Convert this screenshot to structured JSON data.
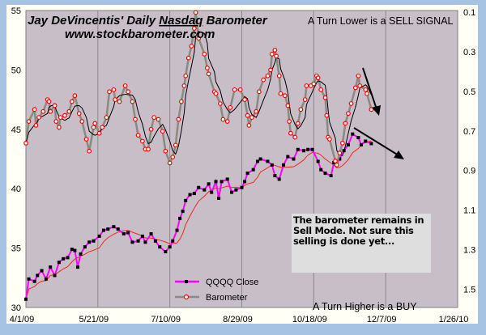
{
  "chart_data": {
    "type": "line",
    "title": "Jay DeVincentis' Daily Nasdaq Barometer",
    "title_parts": {
      "before": "Jay DeVincentis' Daily ",
      "underlined": "Nasdaq",
      "after": " Barometer"
    },
    "subtitle": "www.stockbarometer.com",
    "xlabel": "",
    "ylabel": "",
    "y2label": "",
    "x_range": [
      "4/1/09",
      "1/26/10"
    ],
    "x_ticks": [
      "4/1/09",
      "5/21/09",
      "7/10/09",
      "8/29/09",
      "10/18/09",
      "12/7/09",
      "1/26/10"
    ],
    "y_left": {
      "range": [
        30,
        55
      ],
      "ticks": [
        "30",
        "35",
        "40",
        "45",
        "50",
        "55"
      ]
    },
    "y_right": {
      "range": [
        0.1,
        1.6
      ],
      "inverted": true,
      "ticks": [
        "0.1",
        "0.3",
        "0.5",
        "0.7",
        "0.9",
        "1.1",
        "1.3",
        "1.5"
      ]
    },
    "grid": "vertical",
    "legend_placement": "bottom-center",
    "colors": {
      "plot_bg": "#c8bec8",
      "qqqq": "#ff00ff",
      "qqqq_marker": "#000000",
      "qqqq_ma": "#ff2020",
      "barometer": "#8a8a80",
      "barometer_marker": "#ff0000",
      "barometer_ma": "#000000"
    },
    "series": [
      {
        "name": "QQQQ Close",
        "axis": "left",
        "x": [
          "4/1/09",
          "4/3/09",
          "4/7/09",
          "4/9/09",
          "4/12/09",
          "4/15/09",
          "4/18/09",
          "4/21/09",
          "4/24/09",
          "4/27/09",
          "4/30/09",
          "5/3/09",
          "5/5/09",
          "5/7/09",
          "5/9/09",
          "5/12/09",
          "5/15/09",
          "5/18/09",
          "5/22/09",
          "5/25/09",
          "5/28/09",
          "6/1/09",
          "6/4/09",
          "6/8/09",
          "6/11/09",
          "6/14/09",
          "6/18/09",
          "6/21/09",
          "6/23/09",
          "6/27/09",
          "6/30/09",
          "7/3/09",
          "7/7/09",
          "7/10/09",
          "7/12/09",
          "7/15/09",
          "7/17/09",
          "7/19/09",
          "7/21/09",
          "7/24/09",
          "7/27/09",
          "7/30/09",
          "8/3/09",
          "8/6/09",
          "8/8/09",
          "8/11/09",
          "8/13/09",
          "8/15/09",
          "8/19/09",
          "8/22/09",
          "8/25/09",
          "8/29/09",
          "8/31/09",
          "9/2/09",
          "9/6/09",
          "9/9/09",
          "9/11/09",
          "9/16/09",
          "9/19/09",
          "9/21/09",
          "9/24/09",
          "9/27/09",
          "9/30/09",
          "10/4/09",
          "10/7/09",
          "10/11/09",
          "10/14/09",
          "10/17/09",
          "10/21/09",
          "10/23/09",
          "10/26/09",
          "10/30/09",
          "11/1/09",
          "11/3/09",
          "11/5/09",
          "11/8/09",
          "11/11/09",
          "11/14/09",
          "11/18/09",
          "11/20/09",
          "11/23/09",
          "11/27/09"
        ],
        "y": [
          30.7,
          32.4,
          32.2,
          32.7,
          33.1,
          32.4,
          33.4,
          32.7,
          33.8,
          34.1,
          34.2,
          34.9,
          34.8,
          33.4,
          34.5,
          35.1,
          35.5,
          35.6,
          36.0,
          36.5,
          36.6,
          36.8,
          36.6,
          36.2,
          36.3,
          35.5,
          35.6,
          36.0,
          35.5,
          36.2,
          35.6,
          35.1,
          34.7,
          35.1,
          35.6,
          36.5,
          37.5,
          38.1,
          39.0,
          39.5,
          39.6,
          40.1,
          39.9,
          40.4,
          39.7,
          40.6,
          39.2,
          40.6,
          40.8,
          39.7,
          39.9,
          40.1,
          40.6,
          41.3,
          41.6,
          42.3,
          42.5,
          42.3,
          42.0,
          41.1,
          40.8,
          42.0,
          42.7,
          42.5,
          43.3,
          43.2,
          43.3,
          43.3,
          42.3,
          41.6,
          41.3,
          41.1,
          42.2,
          42.0,
          42.5,
          43.2,
          43.7,
          44.6,
          44.3,
          43.7,
          44.0,
          43.8
        ]
      },
      {
        "name": "Barometer",
        "axis": "right",
        "x": [
          "4/1/09",
          "4/3/09",
          "4/7/09",
          "4/8/09",
          "4/10/09",
          "4/13/09",
          "4/16/09",
          "4/17/09",
          "4/18/09",
          "4/21/09",
          "4/22/09",
          "4/24/09",
          "4/25/09",
          "4/28/09",
          "5/1/09",
          "5/3/09",
          "5/5/09",
          "5/8/09",
          "5/10/09",
          "5/13/09",
          "5/15/09",
          "5/18/09",
          "5/19/09",
          "5/22/09",
          "5/24/09",
          "5/27/09",
          "5/29/09",
          "6/1/09",
          "6/2/09",
          "6/5/09",
          "6/9/09",
          "6/11/09",
          "6/14/09",
          "6/16/09",
          "6/18/09",
          "6/21/09",
          "6/23/09",
          "6/25/09",
          "6/27/09",
          "6/29/09",
          "7/2/09",
          "7/5/09",
          "7/7/09",
          "7/10/09",
          "7/12/09",
          "7/14/09",
          "7/16/09",
          "7/18/09",
          "7/20/09",
          "7/21/09",
          "7/23/09",
          "7/25/09",
          "7/27/09",
          "7/28/09",
          "7/30/09",
          "8/3/09",
          "8/5/09",
          "8/6/09",
          "8/10/09",
          "8/11/09",
          "8/14/09",
          "8/16/09",
          "8/19/09",
          "8/21/09",
          "8/24/09",
          "8/28/09",
          "8/31/09",
          "9/2/09",
          "9/3/09",
          "9/5/09",
          "9/8/09",
          "9/10/09",
          "9/13/09",
          "9/16/09",
          "9/18/09",
          "9/19/09",
          "9/21/09",
          "9/22/09",
          "9/24/09",
          "9/25/09",
          "9/28/09",
          "9/30/09",
          "10/1/09",
          "10/2/09",
          "10/5/09",
          "10/7/09",
          "10/9/09",
          "10/12/09",
          "10/13/09",
          "10/16/09",
          "10/18/09",
          "10/20/09",
          "10/21/09",
          "10/23/09",
          "10/26/09",
          "10/27/09",
          "10/28/09",
          "10/29/09",
          "11/2/09",
          "11/3/09",
          "11/5/09",
          "11/7/09",
          "11/9/09",
          "11/11/09",
          "11/13/09",
          "11/16/09",
          "11/18/09",
          "11/19/09",
          "11/23/09",
          "11/24/09",
          "11/27/09"
        ],
        "y": [
          0.77,
          0.66,
          0.6,
          0.68,
          0.64,
          0.61,
          0.55,
          0.56,
          0.61,
          0.58,
          0.66,
          0.69,
          0.64,
          0.63,
          0.61,
          0.56,
          0.53,
          0.62,
          0.66,
          0.75,
          0.81,
          0.69,
          0.67,
          0.72,
          0.69,
          0.64,
          0.51,
          0.5,
          0.55,
          0.56,
          0.48,
          0.51,
          0.56,
          0.65,
          0.73,
          0.76,
          0.8,
          0.8,
          0.7,
          0.64,
          0.65,
          0.71,
          0.81,
          0.87,
          0.84,
          0.78,
          0.65,
          0.56,
          0.48,
          0.43,
          0.34,
          0.28,
          0.19,
          0.11,
          0.24,
          0.32,
          0.39,
          0.42,
          0.51,
          0.52,
          0.57,
          0.65,
          0.66,
          0.59,
          0.5,
          0.5,
          0.55,
          0.63,
          0.68,
          0.64,
          0.61,
          0.51,
          0.45,
          0.43,
          0.4,
          0.32,
          0.3,
          0.33,
          0.43,
          0.52,
          0.53,
          0.58,
          0.66,
          0.72,
          0.74,
          0.67,
          0.6,
          0.55,
          0.48,
          0.48,
          0.47,
          0.43,
          0.44,
          0.5,
          0.54,
          0.63,
          0.74,
          0.75,
          0.86,
          0.88,
          0.82,
          0.77,
          0.67,
          0.62,
          0.57,
          0.49,
          0.43,
          0.48,
          0.5,
          0.52,
          0.6
        ]
      }
    ],
    "annotations": {
      "sell": "A Turn Lower is a SELL  SIGNAL",
      "buy": "A Turn Higher is a BUY",
      "note": "The barometer remains in Sell Mode.  Not sure this selling is done yet..."
    }
  }
}
